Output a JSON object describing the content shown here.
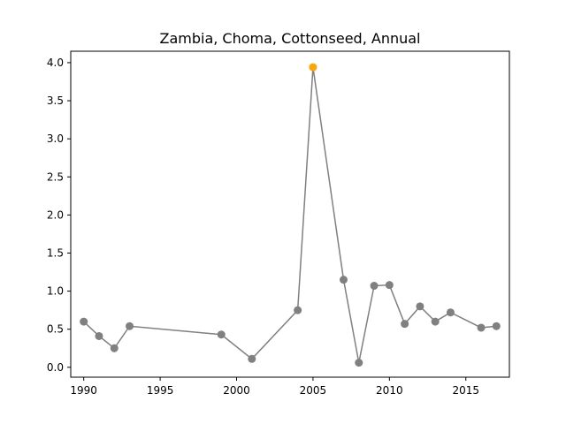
{
  "chart_data": {
    "type": "line",
    "title": "Zambia, Choma, Cottonseed, Annual",
    "xlabel": "",
    "ylabel": "",
    "xlim": [
      1989.15,
      2017.85
    ],
    "ylim": [
      -0.13,
      4.15
    ],
    "xticks": [
      1990,
      1995,
      2000,
      2005,
      2010,
      2015
    ],
    "yticks": [
      0.0,
      0.5,
      1.0,
      1.5,
      2.0,
      2.5,
      3.0,
      3.5,
      4.0
    ],
    "ytick_labels": [
      "0.0",
      "0.5",
      "1.0",
      "1.5",
      "2.0",
      "2.5",
      "3.0",
      "3.5",
      "4.0"
    ],
    "grid": false,
    "series": [
      {
        "line_color": "#808080",
        "marker_color": "#808080",
        "highlight_color": "#ffa500",
        "points": [
          {
            "x": 1990,
            "y": 0.6
          },
          {
            "x": 1991,
            "y": 0.41
          },
          {
            "x": 1992,
            "y": 0.25
          },
          {
            "x": 1993,
            "y": 0.54
          },
          {
            "x": 1999,
            "y": 0.43
          },
          {
            "x": 2001,
            "y": 0.11
          },
          {
            "x": 2004,
            "y": 0.75
          },
          {
            "x": 2005,
            "y": 3.94,
            "highlight": true
          },
          {
            "x": 2007,
            "y": 1.15
          },
          {
            "x": 2008,
            "y": 0.06
          },
          {
            "x": 2009,
            "y": 1.07
          },
          {
            "x": 2010,
            "y": 1.08
          },
          {
            "x": 2011,
            "y": 0.57
          },
          {
            "x": 2012,
            "y": 0.8
          },
          {
            "x": 2013,
            "y": 0.6
          },
          {
            "x": 2014,
            "y": 0.72
          },
          {
            "x": 2016,
            "y": 0.52
          },
          {
            "x": 2017,
            "y": 0.54
          }
        ]
      }
    ]
  }
}
